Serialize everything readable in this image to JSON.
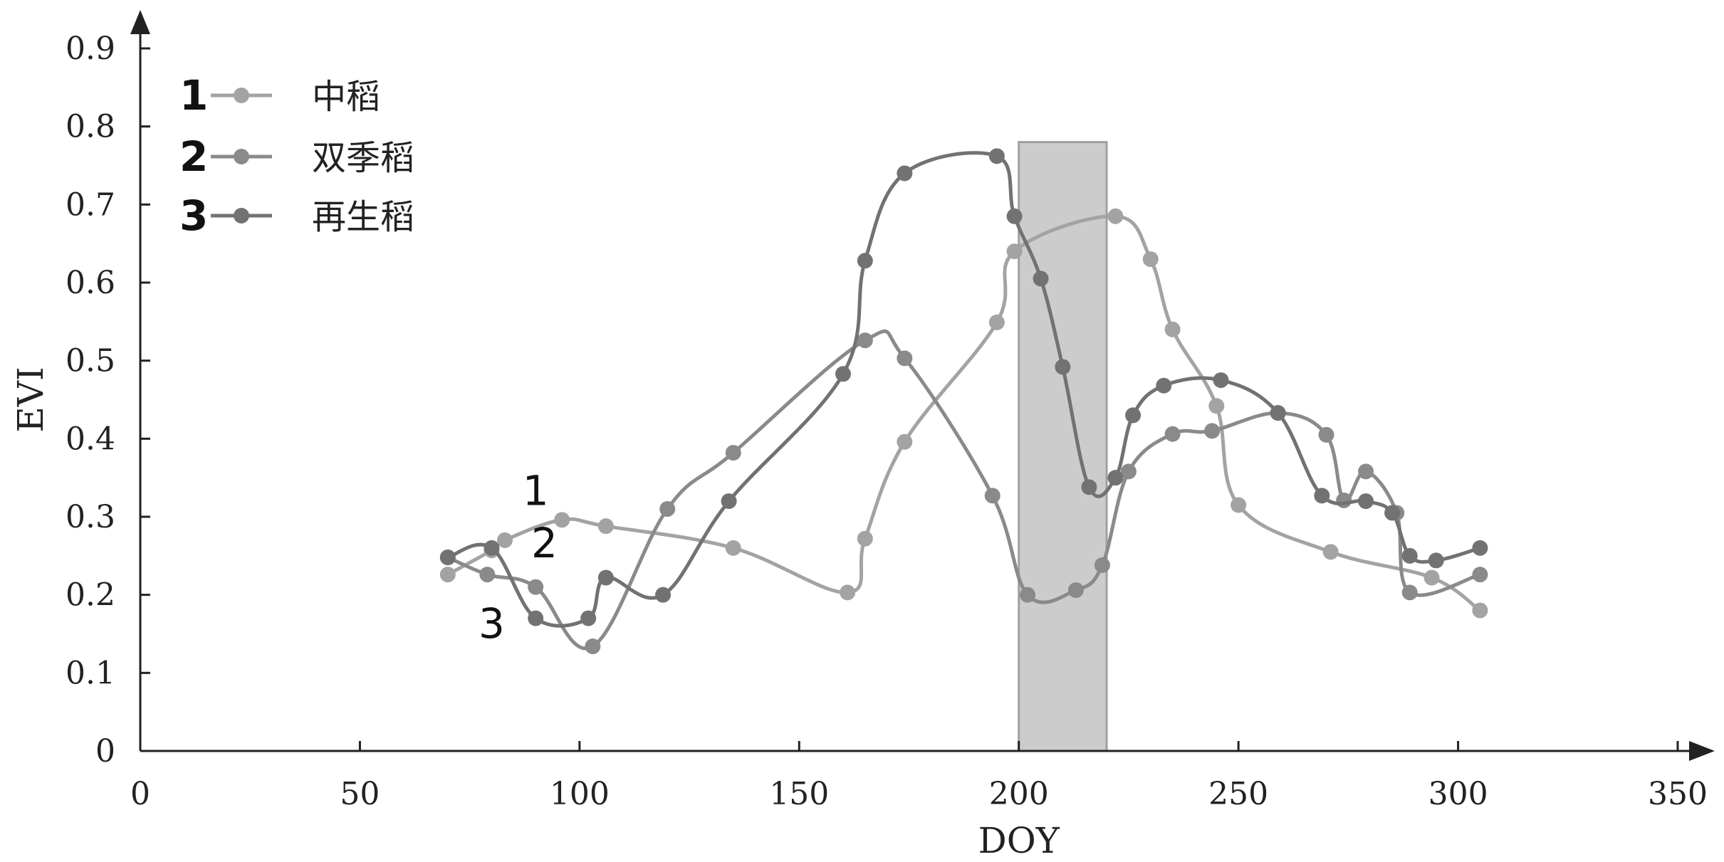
{
  "chart_data": {
    "type": "line",
    "title": "",
    "xlabel": "DOY",
    "ylabel": "EVI",
    "xlim": [
      0,
      350
    ],
    "ylim": [
      0,
      0.9
    ],
    "xticks": [
      "0",
      "50",
      "100",
      "150",
      "200",
      "250",
      "300",
      "350"
    ],
    "yticks": [
      "0",
      "0.1",
      "0.2",
      "0.3",
      "0.4",
      "0.5",
      "0.6",
      "0.7",
      "0.8",
      "0.9"
    ],
    "grid": false,
    "legend": "top-left",
    "highlight_band": {
      "x": [
        200,
        220
      ],
      "y": [
        0,
        0.78
      ],
      "color": "#cccccc"
    },
    "series": [
      {
        "name": "中稻",
        "number": "1",
        "color": "#a3a3a3",
        "x": [
          70,
          80,
          83,
          96,
          106,
          135,
          161,
          165,
          174,
          195,
          199,
          222,
          230,
          235,
          245,
          250,
          271,
          294,
          305
        ],
        "y": [
          0.226,
          0.257,
          0.27,
          0.296,
          0.288,
          0.26,
          0.203,
          0.272,
          0.396,
          0.549,
          0.64,
          0.685,
          0.63,
          0.54,
          0.442,
          0.315,
          0.255,
          0.222,
          0.18
        ]
      },
      {
        "name": "双季稻",
        "number": "2",
        "color": "#8a8a8a",
        "x": [
          70,
          79,
          90,
          103,
          120,
          135,
          165,
          174,
          194,
          202,
          213,
          219,
          225,
          235,
          244,
          259,
          270,
          274,
          279,
          286,
          289,
          305
        ],
        "y": [
          0.248,
          0.226,
          0.21,
          0.134,
          0.31,
          0.382,
          0.526,
          0.503,
          0.327,
          0.2,
          0.206,
          0.238,
          0.358,
          0.406,
          0.41,
          0.433,
          0.405,
          0.321,
          0.358,
          0.305,
          0.203,
          0.226
        ]
      },
      {
        "name": "再生稻",
        "number": "3",
        "color": "#727272",
        "x": [
          70,
          80,
          90,
          102,
          106,
          119,
          134,
          160,
          165,
          174,
          195,
          199,
          205,
          210,
          216,
          222,
          226,
          233,
          246,
          259,
          269,
          279,
          285,
          289,
          295,
          305
        ],
        "y": [
          0.248,
          0.26,
          0.17,
          0.17,
          0.222,
          0.2,
          0.32,
          0.483,
          0.628,
          0.74,
          0.762,
          0.685,
          0.605,
          0.492,
          0.338,
          0.35,
          0.43,
          0.468,
          0.475,
          0.433,
          0.327,
          0.32,
          0.305,
          0.25,
          0.244,
          0.26
        ]
      }
    ],
    "curve_labels": [
      {
        "text": "1",
        "x": 90,
        "y": 0.315
      },
      {
        "text": "2",
        "x": 92,
        "y": 0.248
      },
      {
        "text": "3",
        "x": 80,
        "y": 0.145
      }
    ]
  }
}
